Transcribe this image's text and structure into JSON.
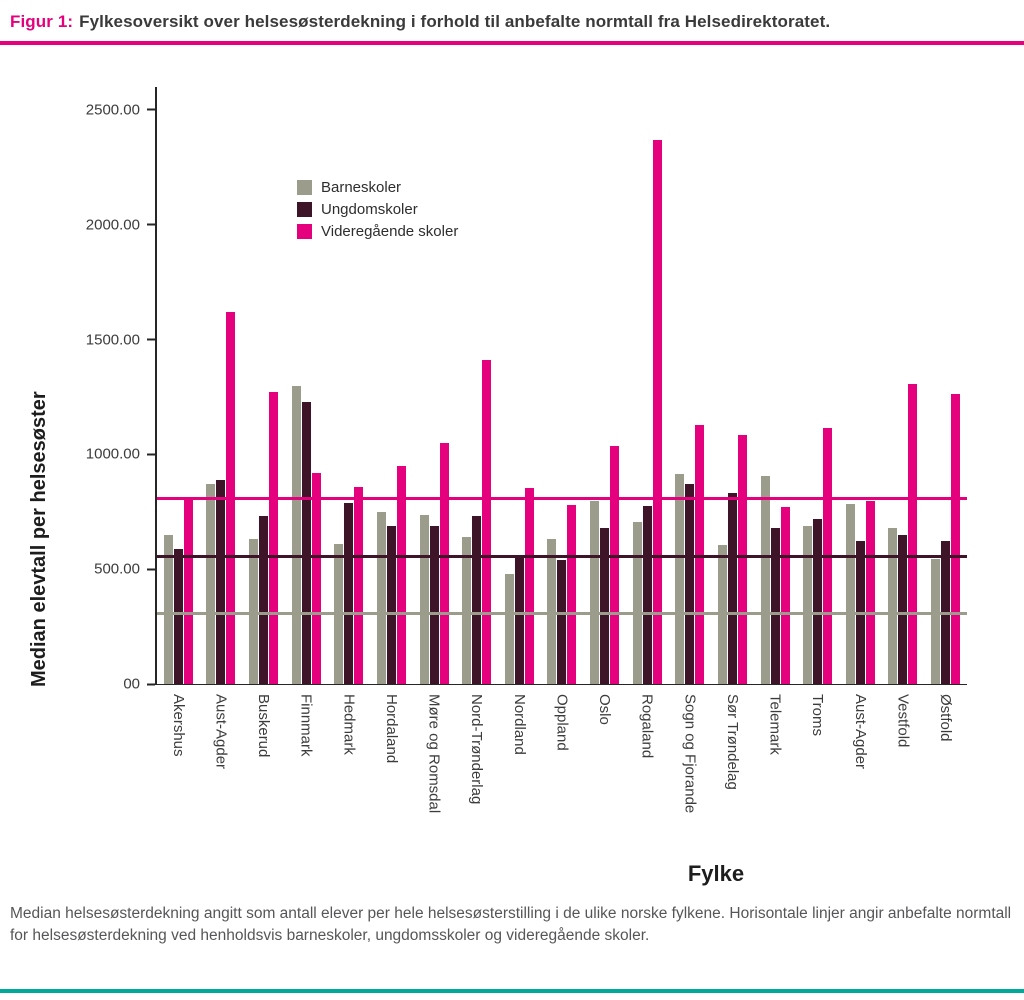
{
  "figure": {
    "label": "Figur 1:",
    "title": "Fylkesoversikt over helsesøsterdekning i forhold til anbefalte normtall fra Helsedirektoratet."
  },
  "caption": "Median helsesøsterdekning angitt som antall elever per hele helsesøsterstilling i de ulike norske fylkene. Horisontale linjer angir anbefalte normtall for helsesøsterdekning ved henholdsvis barneskoler, ungdomsskoler og videregående skoler.",
  "colors": {
    "accent_pink": "#e5007d",
    "accent_teal": "#00a79b",
    "barneskoler": "#9b9c8c",
    "ungdomskoler": "#3d1428",
    "videregaende": "#e5007d"
  },
  "chart_data": {
    "type": "bar",
    "title": "",
    "xlabel": "Fylke",
    "ylabel": "Median elevtall per helsesøster",
    "ylim": [
      0,
      2600
    ],
    "grid": false,
    "legend_position": "upper-left-inside",
    "yticks": [
      0,
      500,
      1000,
      1500,
      2000,
      2500
    ],
    "ytick_labels": [
      "00",
      "500.00",
      "1000.00",
      "1500.00",
      "2000.00",
      "2500.00"
    ],
    "categories": [
      "Akershus",
      "Aust-Agder",
      "Buskerud",
      "Finnmark",
      "Hedmark",
      "Hordaland",
      "Møre og Romsdal",
      "Nord-Trønderlag",
      "Nordland",
      "Oppland",
      "Oslo",
      "Rogaland",
      "Sogn og Fjorande",
      "Sør Trøndelag",
      "Telemark",
      "Troms",
      "Aust-Agder",
      "Vestfold",
      "Østfold"
    ],
    "series": [
      {
        "name": "Barneskoler",
        "color": "#9b9c8c",
        "values": [
          650,
          870,
          630,
          1300,
          610,
          750,
          735,
          640,
          480,
          630,
          795,
          705,
          915,
          605,
          905,
          690,
          785,
          680,
          545
        ]
      },
      {
        "name": "Ungdomskoler",
        "color": "#3d1428",
        "values": [
          590,
          890,
          730,
          1230,
          790,
          690,
          690,
          730,
          550,
          540,
          680,
          775,
          870,
          830,
          680,
          720,
          625,
          650,
          625
        ]
      },
      {
        "name": "Videregående skoler",
        "color": "#e5007d",
        "values": [
          810,
          1620,
          1270,
          920,
          860,
          950,
          1050,
          1410,
          855,
          780,
          1035,
          2370,
          1130,
          1085,
          770,
          1115,
          795,
          1305,
          1265
        ]
      }
    ],
    "reference_lines": [
      {
        "name": "norm-videregaende-skoler",
        "value": 800,
        "color": "#e5007d"
      },
      {
        "name": "norm-ungdomsskoler",
        "value": 550,
        "color": "#3d1428"
      },
      {
        "name": "norm-barneskoler",
        "value": 300,
        "color": "#9b9c8c"
      }
    ]
  }
}
